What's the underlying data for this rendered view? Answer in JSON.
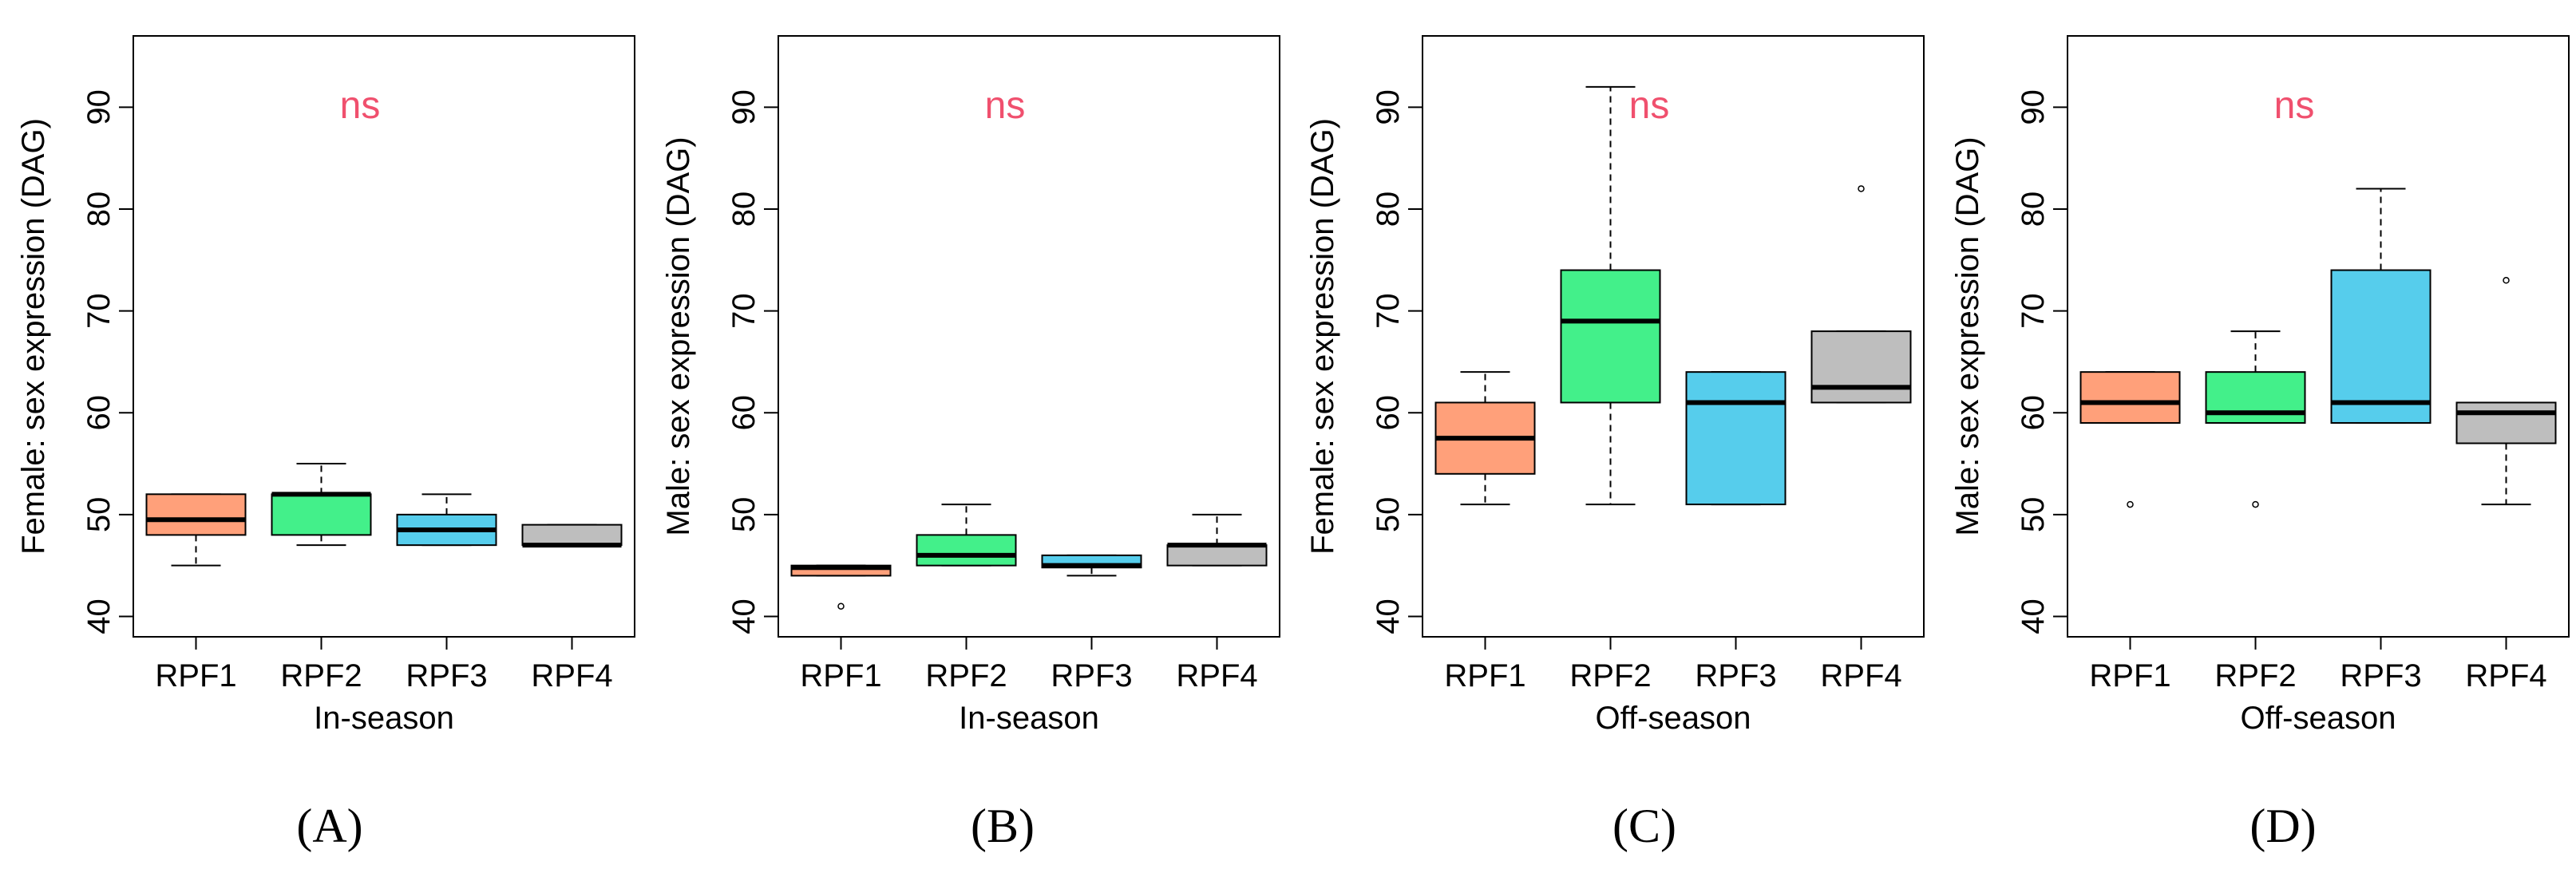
{
  "chart_data": [
    {
      "type": "box",
      "panel_label": "(A)",
      "title": "",
      "xlabel": "In-season",
      "ylabel": "Female: sex expression (DAG)",
      "ylim": [
        38,
        97
      ],
      "yticks": [
        40,
        50,
        60,
        70,
        80,
        90
      ],
      "categories": [
        "RPF1",
        "RPF2",
        "RPF3",
        "RPF4"
      ],
      "annotation": "ns",
      "boxes": [
        {
          "category": "RPF1",
          "whisker_low": 45,
          "q1": 48,
          "median": 49.5,
          "q3": 52,
          "whisker_high": 52,
          "outliers": [],
          "color": "#FFA07A"
        },
        {
          "category": "RPF2",
          "whisker_low": 47,
          "q1": 48,
          "median": 52,
          "q3": 52,
          "whisker_high": 55,
          "outliers": [],
          "color": "#43F08A"
        },
        {
          "category": "RPF3",
          "whisker_low": 47,
          "q1": 47,
          "median": 48.5,
          "q3": 50,
          "whisker_high": 52,
          "outliers": [],
          "color": "#56CDEC"
        },
        {
          "category": "RPF4",
          "whisker_low": 47,
          "q1": 47,
          "median": 47,
          "q3": 49,
          "whisker_high": 49,
          "outliers": [],
          "color": "#BEBEBE"
        }
      ]
    },
    {
      "type": "box",
      "panel_label": "(B)",
      "title": "",
      "xlabel": "In-season",
      "ylabel": "Male: sex expression (DAG)",
      "ylim": [
        38,
        97
      ],
      "yticks": [
        40,
        50,
        60,
        70,
        80,
        90
      ],
      "categories": [
        "RPF1",
        "RPF2",
        "RPF3",
        "RPF4"
      ],
      "annotation": "ns",
      "boxes": [
        {
          "category": "RPF1",
          "whisker_low": 44,
          "q1": 44,
          "median": 44.8,
          "q3": 45,
          "whisker_high": 45,
          "outliers": [
            41
          ],
          "color": "#FFA07A"
        },
        {
          "category": "RPF2",
          "whisker_low": 45,
          "q1": 45,
          "median": 46,
          "q3": 48,
          "whisker_high": 51,
          "outliers": [],
          "color": "#43F08A"
        },
        {
          "category": "RPF3",
          "whisker_low": 44,
          "q1": 44.8,
          "median": 45,
          "q3": 46,
          "whisker_high": 46,
          "outliers": [],
          "color": "#56CDEC"
        },
        {
          "category": "RPF4",
          "whisker_low": 45,
          "q1": 45,
          "median": 47,
          "q3": 47,
          "whisker_high": 50,
          "outliers": [],
          "color": "#BEBEBE"
        }
      ]
    },
    {
      "type": "box",
      "panel_label": "(C)",
      "title": "",
      "xlabel": "Off-season",
      "ylabel": "Female: sex expression (DAG)",
      "ylim": [
        38,
        97
      ],
      "yticks": [
        40,
        50,
        60,
        70,
        80,
        90
      ],
      "categories": [
        "RPF1",
        "RPF2",
        "RPF3",
        "RPF4"
      ],
      "annotation": "ns",
      "boxes": [
        {
          "category": "RPF1",
          "whisker_low": 51,
          "q1": 54,
          "median": 57.5,
          "q3": 61,
          "whisker_high": 64,
          "outliers": [],
          "color": "#FFA07A"
        },
        {
          "category": "RPF2",
          "whisker_low": 51,
          "q1": 61,
          "median": 69,
          "q3": 74,
          "whisker_high": 92,
          "outliers": [],
          "color": "#43F08A"
        },
        {
          "category": "RPF3",
          "whisker_low": 51,
          "q1": 51,
          "median": 61,
          "q3": 64,
          "whisker_high": 64,
          "outliers": [],
          "color": "#56CDEC"
        },
        {
          "category": "RPF4",
          "whisker_low": 61,
          "q1": 61,
          "median": 62.5,
          "q3": 68,
          "whisker_high": 68,
          "outliers": [
            82
          ],
          "color": "#BEBEBE"
        }
      ]
    },
    {
      "type": "box",
      "panel_label": "(D)",
      "title": "",
      "xlabel": "Off-season",
      "ylabel": "Male: sex expression (DAG)",
      "ylim": [
        38,
        97
      ],
      "yticks": [
        40,
        50,
        60,
        70,
        80,
        90
      ],
      "categories": [
        "RPF1",
        "RPF2",
        "RPF3",
        "RPF4"
      ],
      "annotation": "ns",
      "boxes": [
        {
          "category": "RPF1",
          "whisker_low": 59,
          "q1": 59,
          "median": 61,
          "q3": 64,
          "whisker_high": 64,
          "outliers": [
            51
          ],
          "color": "#FFA07A"
        },
        {
          "category": "RPF2",
          "whisker_low": 59,
          "q1": 59,
          "median": 60,
          "q3": 64,
          "whisker_high": 68,
          "outliers": [
            51
          ],
          "color": "#43F08A"
        },
        {
          "category": "RPF3",
          "whisker_low": 59,
          "q1": 59,
          "median": 61,
          "q3": 74,
          "whisker_high": 82,
          "outliers": [],
          "color": "#56CDEC"
        },
        {
          "category": "RPF4",
          "whisker_low": 51,
          "q1": 57,
          "median": 60,
          "q3": 61,
          "whisker_high": 61,
          "outliers": [
            73
          ],
          "color": "#BEBEBE"
        }
      ]
    }
  ],
  "colors": {
    "annotation": "#F0506E",
    "axis": "#000000",
    "whisker": "#000000"
  }
}
